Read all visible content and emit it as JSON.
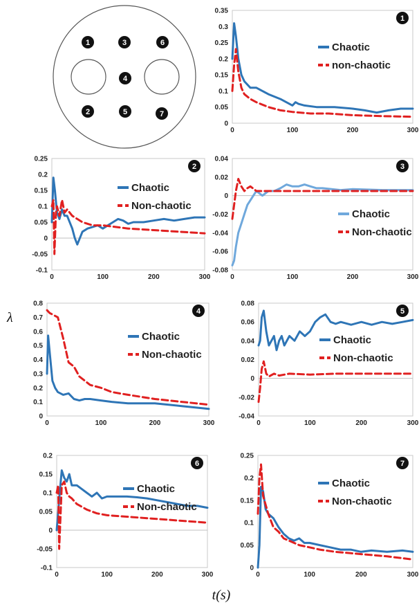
{
  "diagram": {
    "probes": [
      "1",
      "2",
      "3",
      "4",
      "5",
      "6",
      "7"
    ]
  },
  "axes": {
    "y_symbol": "λ",
    "x_label": "t(s)"
  },
  "colors": {
    "chaotic": "#2e75b6",
    "chaotic_light": "#6fa8dc",
    "non_chaotic": "#e02020"
  },
  "chart_data": [
    {
      "type": "line",
      "panel": "1",
      "x_ticks": [
        0,
        100,
        200,
        300
      ],
      "y_ticks": [
        0,
        0.05,
        0.1,
        0.15,
        0.2,
        0.25,
        0.3,
        0.35
      ],
      "y_tick_labels": [
        "0",
        "0.05",
        "0.1",
        "0.15",
        "0.2",
        "0.25",
        "0.3",
        "0.35"
      ],
      "xlim": [
        0,
        300
      ],
      "ylim": [
        0,
        0.35
      ],
      "legend": "top-right",
      "series": [
        {
          "name": "Chaotic",
          "style": "solid",
          "color_key": "chaotic",
          "x": [
            0,
            3,
            6,
            10,
            15,
            20,
            30,
            40,
            60,
            80,
            100,
            105,
            110,
            120,
            140,
            170,
            200,
            220,
            240,
            260,
            280,
            300
          ],
          "y": [
            0.2,
            0.31,
            0.27,
            0.2,
            0.15,
            0.13,
            0.11,
            0.11,
            0.09,
            0.075,
            0.055,
            0.065,
            0.06,
            0.055,
            0.05,
            0.05,
            0.045,
            0.04,
            0.033,
            0.04,
            0.045,
            0.045
          ]
        },
        {
          "name": "non-chaotic",
          "style": "dashed",
          "color_key": "non_chaotic",
          "x": [
            0,
            3,
            6,
            10,
            15,
            20,
            30,
            40,
            60,
            80,
            100,
            130,
            160,
            200,
            250,
            300
          ],
          "y": [
            0.1,
            0.18,
            0.23,
            0.16,
            0.11,
            0.09,
            0.075,
            0.065,
            0.05,
            0.04,
            0.035,
            0.03,
            0.03,
            0.025,
            0.022,
            0.02
          ]
        }
      ]
    },
    {
      "type": "line",
      "panel": "2",
      "x_ticks": [
        0,
        100,
        200,
        300
      ],
      "y_ticks": [
        -0.1,
        -0.05,
        0,
        0.05,
        0.1,
        0.15,
        0.2,
        0.25
      ],
      "y_tick_labels": [
        "-0.1",
        "-0.05",
        "0",
        "0.05",
        "0.1",
        "0.15",
        "0.2",
        "0.25"
      ],
      "xlim": [
        0,
        300
      ],
      "ylim": [
        -0.1,
        0.25
      ],
      "legend": "top-right",
      "series": [
        {
          "name": "Chaotic",
          "style": "solid",
          "color_key": "chaotic",
          "x": [
            0,
            3,
            6,
            10,
            15,
            20,
            25,
            30,
            35,
            40,
            45,
            50,
            55,
            60,
            70,
            80,
            90,
            100,
            110,
            120,
            130,
            140,
            150,
            160,
            170,
            180,
            200,
            220,
            240,
            260,
            280,
            300
          ],
          "y": [
            0.05,
            0.19,
            0.15,
            0.08,
            0.06,
            0.09,
            0.07,
            0.07,
            0.05,
            0.03,
            0,
            -0.02,
            0,
            0.02,
            0.03,
            0.035,
            0.04,
            0.03,
            0.04,
            0.05,
            0.06,
            0.055,
            0.045,
            0.05,
            0.05,
            0.05,
            0.055,
            0.06,
            0.055,
            0.06,
            0.065,
            0.065
          ]
        },
        {
          "name": "Non-chaotic",
          "style": "dashed",
          "color_key": "non_chaotic",
          "x": [
            0,
            3,
            5,
            8,
            10,
            15,
            20,
            25,
            30,
            40,
            50,
            60,
            80,
            100,
            150,
            200,
            250,
            300
          ],
          "y": [
            0.1,
            0.12,
            -0.05,
            0.08,
            0.1,
            0.07,
            0.12,
            0.08,
            0.09,
            0.07,
            0.06,
            0.05,
            0.04,
            0.04,
            0.03,
            0.025,
            0.02,
            0.015
          ]
        }
      ]
    },
    {
      "type": "line",
      "panel": "3",
      "x_ticks": [
        0,
        100,
        200,
        300
      ],
      "y_ticks": [
        -0.08,
        -0.06,
        -0.04,
        -0.02,
        0,
        0.02,
        0.04
      ],
      "y_tick_labels": [
        "-0.08",
        "-0.06",
        "-0.04",
        "-0.02",
        "0",
        "0.02",
        "0.04"
      ],
      "xlim": [
        0,
        300
      ],
      "ylim": [
        -0.08,
        0.04
      ],
      "legend": "center-right",
      "series": [
        {
          "name": "Chaotic",
          "style": "solid",
          "color_key": "chaotic_light",
          "x": [
            0,
            3,
            6,
            10,
            15,
            20,
            25,
            30,
            35,
            40,
            50,
            60,
            70,
            80,
            90,
            100,
            110,
            120,
            130,
            140,
            150,
            180,
            200,
            250,
            300
          ],
          "y": [
            -0.075,
            -0.07,
            -0.055,
            -0.04,
            -0.03,
            -0.02,
            -0.01,
            -0.005,
            0,
            0.005,
            0,
            0.005,
            0.005,
            0.008,
            0.012,
            0.01,
            0.01,
            0.012,
            0.01,
            0.008,
            0.008,
            0.006,
            0.007,
            0.006,
            0.006
          ]
        },
        {
          "name": "Non-chaotic",
          "style": "dashed",
          "color_key": "non_chaotic",
          "x": [
            0,
            3,
            6,
            10,
            15,
            20,
            25,
            30,
            40,
            60,
            100,
            150,
            200,
            250,
            300
          ],
          "y": [
            -0.025,
            -0.01,
            0.005,
            0.018,
            0.01,
            0.005,
            0.008,
            0.01,
            0.005,
            0.005,
            0.005,
            0.005,
            0.005,
            0.005,
            0.005
          ]
        }
      ]
    },
    {
      "type": "line",
      "panel": "4",
      "x_ticks": [
        0,
        100,
        200,
        300
      ],
      "y_ticks": [
        0,
        0.1,
        0.2,
        0.3,
        0.4,
        0.5,
        0.6,
        0.7,
        0.8
      ],
      "y_tick_labels": [
        "0",
        "0.1",
        "0.2",
        "0.3",
        "0.4",
        "0.5",
        "0.6",
        "0.7",
        "0.8"
      ],
      "xlim": [
        0,
        300
      ],
      "ylim": [
        0,
        0.8
      ],
      "legend": "center-right",
      "series": [
        {
          "name": "Chaotic",
          "style": "solid",
          "color_key": "chaotic",
          "x": [
            0,
            2,
            5,
            10,
            15,
            20,
            30,
            40,
            50,
            60,
            70,
            80,
            100,
            120,
            150,
            200,
            250,
            300
          ],
          "y": [
            0.3,
            0.57,
            0.45,
            0.25,
            0.2,
            0.17,
            0.15,
            0.16,
            0.12,
            0.11,
            0.12,
            0.12,
            0.11,
            0.1,
            0.09,
            0.09,
            0.07,
            0.05
          ]
        },
        {
          "name": "Non-chaotic",
          "style": "dashed",
          "color_key": "non_chaotic",
          "x": [
            0,
            5,
            10,
            20,
            30,
            40,
            50,
            60,
            70,
            80,
            100,
            120,
            150,
            200,
            250,
            300
          ],
          "y": [
            0.75,
            0.73,
            0.72,
            0.7,
            0.55,
            0.38,
            0.35,
            0.28,
            0.25,
            0.22,
            0.2,
            0.17,
            0.15,
            0.12,
            0.1,
            0.08
          ]
        }
      ]
    },
    {
      "type": "line",
      "panel": "5",
      "x_ticks": [
        0,
        100,
        200,
        300
      ],
      "y_ticks": [
        -0.04,
        -0.02,
        0,
        0.02,
        0.04,
        0.06,
        0.08
      ],
      "y_tick_labels": [
        "-0.04",
        "-0.02",
        "0",
        "0.02",
        "0.04",
        "0.06",
        "0.08"
      ],
      "xlim": [
        0,
        300
      ],
      "ylim": [
        -0.04,
        0.08
      ],
      "legend": "center-right",
      "series": [
        {
          "name": "Chaotic",
          "style": "solid",
          "color_key": "chaotic",
          "x": [
            0,
            3,
            6,
            10,
            15,
            20,
            25,
            30,
            35,
            40,
            45,
            50,
            60,
            70,
            80,
            90,
            100,
            110,
            120,
            130,
            140,
            150,
            160,
            180,
            200,
            220,
            240,
            260,
            280,
            300
          ],
          "y": [
            0.035,
            0.04,
            0.065,
            0.072,
            0.05,
            0.035,
            0.04,
            0.045,
            0.03,
            0.04,
            0.045,
            0.035,
            0.045,
            0.04,
            0.05,
            0.045,
            0.05,
            0.06,
            0.065,
            0.068,
            0.06,
            0.058,
            0.06,
            0.057,
            0.06,
            0.057,
            0.06,
            0.058,
            0.06,
            0.062
          ]
        },
        {
          "name": "Non-chaotic",
          "style": "dashed",
          "color_key": "non_chaotic",
          "x": [
            0,
            3,
            6,
            10,
            15,
            20,
            30,
            40,
            60,
            100,
            150,
            200,
            250,
            300
          ],
          "y": [
            -0.025,
            -0.01,
            0.01,
            0.018,
            0.005,
            0.002,
            0.005,
            0.003,
            0.005,
            0.004,
            0.005,
            0.005,
            0.005,
            0.005
          ]
        }
      ]
    },
    {
      "type": "line",
      "panel": "6",
      "x_ticks": [
        0,
        100,
        200,
        300
      ],
      "y_ticks": [
        -0.1,
        -0.05,
        0,
        0.05,
        0.1,
        0.15,
        0.2
      ],
      "y_tick_labels": [
        "-0.1",
        "-0.05",
        "0",
        "0.05",
        "0.1",
        "0.15",
        "0.2"
      ],
      "xlim": [
        0,
        300
      ],
      "ylim": [
        -0.1,
        0.2
      ],
      "legend": "top-right",
      "series": [
        {
          "name": "Chaotic",
          "style": "solid",
          "color_key": "chaotic",
          "x": [
            0,
            3,
            6,
            10,
            15,
            20,
            25,
            30,
            40,
            50,
            60,
            70,
            80,
            90,
            100,
            120,
            140,
            160,
            180,
            200,
            220,
            240,
            260,
            280,
            300
          ],
          "y": [
            0,
            0.05,
            0.1,
            0.16,
            0.14,
            0.13,
            0.15,
            0.12,
            0.12,
            0.11,
            0.1,
            0.09,
            0.1,
            0.085,
            0.09,
            0.09,
            0.09,
            0.088,
            0.085,
            0.08,
            0.075,
            0.07,
            0.065,
            0.065,
            0.06
          ]
        },
        {
          "name": "Non-chaotic",
          "style": "dashed",
          "color_key": "non_chaotic",
          "x": [
            0,
            3,
            5,
            8,
            10,
            15,
            20,
            25,
            30,
            40,
            60,
            80,
            100,
            150,
            200,
            250,
            300
          ],
          "y": [
            0.1,
            0.12,
            -0.05,
            0.05,
            0.12,
            0.13,
            0.1,
            0.09,
            0.085,
            0.07,
            0.055,
            0.045,
            0.04,
            0.035,
            0.03,
            0.025,
            0.02
          ]
        }
      ]
    },
    {
      "type": "line",
      "panel": "7",
      "x_ticks": [
        0,
        100,
        200,
        300
      ],
      "y_ticks": [
        0,
        0.05,
        0.1,
        0.15,
        0.2,
        0.25
      ],
      "y_tick_labels": [
        "0",
        "0.05",
        "0.1",
        "0.15",
        "0.2",
        "0.25"
      ],
      "xlim": [
        0,
        300
      ],
      "ylim": [
        0,
        0.25
      ],
      "legend": "top-right",
      "series": [
        {
          "name": "Chaotic",
          "style": "solid",
          "color_key": "chaotic",
          "x": [
            0,
            3,
            6,
            10,
            15,
            20,
            30,
            40,
            50,
            60,
            70,
            80,
            90,
            100,
            120,
            140,
            160,
            180,
            200,
            220,
            250,
            280,
            300
          ],
          "y": [
            0,
            0.05,
            0.18,
            0.17,
            0.13,
            0.12,
            0.11,
            0.09,
            0.075,
            0.065,
            0.06,
            0.065,
            0.055,
            0.055,
            0.05,
            0.045,
            0.04,
            0.04,
            0.035,
            0.038,
            0.035,
            0.038,
            0.035
          ]
        },
        {
          "name": "Non-chaotic",
          "style": "dashed",
          "color_key": "non_chaotic",
          "x": [
            0,
            3,
            6,
            10,
            15,
            20,
            30,
            40,
            50,
            60,
            80,
            100,
            120,
            150,
            200,
            250,
            300
          ],
          "y": [
            0.12,
            0.2,
            0.23,
            0.16,
            0.14,
            0.12,
            0.09,
            0.08,
            0.065,
            0.06,
            0.05,
            0.045,
            0.04,
            0.035,
            0.03,
            0.025,
            0.018
          ]
        }
      ]
    }
  ]
}
